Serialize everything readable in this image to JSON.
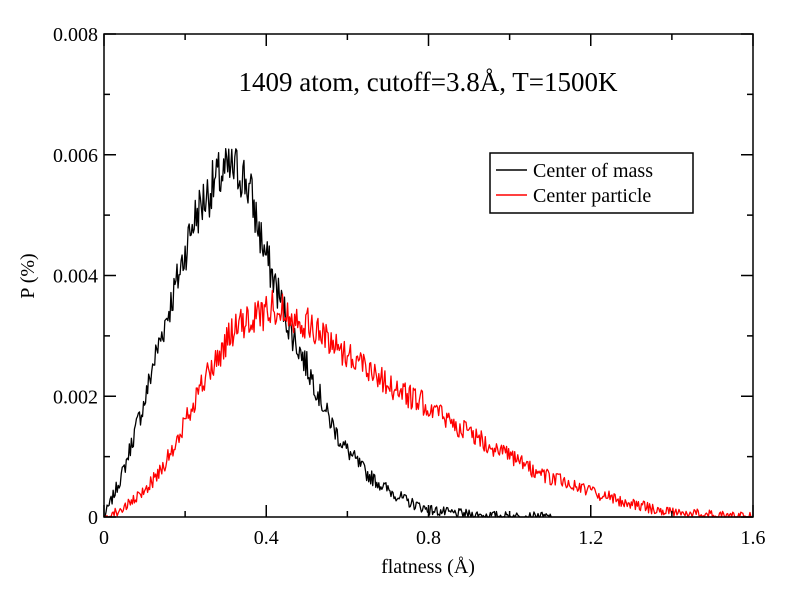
{
  "chart_data": {
    "type": "line",
    "title": "",
    "annotation": "1409 atom, cutoff=3.8Å, T=1500K",
    "xlabel": "flatness (Å)",
    "ylabel": "P (%)",
    "xlim": [
      0,
      1.6
    ],
    "ylim": [
      0,
      0.008
    ],
    "xticks": [
      "0",
      "0.4",
      "0.8",
      "1.2",
      "1.6"
    ],
    "yticks": [
      "0",
      "0.002",
      "0.004",
      "0.006",
      "0.008"
    ],
    "grid": false,
    "legend_position": "top-right",
    "series": [
      {
        "name": "Center of mass",
        "color": "#000000",
        "x": [
          0,
          0.02,
          0.05,
          0.08,
          0.1,
          0.12,
          0.15,
          0.18,
          0.2,
          0.22,
          0.25,
          0.28,
          0.3,
          0.32,
          0.34,
          0.36,
          0.38,
          0.4,
          0.42,
          0.44,
          0.46,
          0.48,
          0.5,
          0.52,
          0.55,
          0.58,
          0.6,
          0.65,
          0.7,
          0.75,
          0.8,
          0.85,
          0.9,
          0.95,
          1.0,
          1.1,
          1.2,
          1.4,
          1.6
        ],
        "values": [
          0.0,
          0.0003,
          0.0008,
          0.0015,
          0.0019,
          0.0025,
          0.0032,
          0.0039,
          0.0044,
          0.0049,
          0.0053,
          0.0056,
          0.0057,
          0.00575,
          0.0057,
          0.0054,
          0.0048,
          0.0043,
          0.0039,
          0.0035,
          0.0031,
          0.0028,
          0.0025,
          0.0022,
          0.0017,
          0.0013,
          0.0011,
          0.0007,
          0.00045,
          0.00025,
          0.00012,
          7e-05,
          4e-05,
          2e-05,
          1e-05,
          0.0,
          0.0,
          0.0,
          0.0
        ]
      },
      {
        "name": "Center particle",
        "color": "#ff0000",
        "x": [
          0,
          0.02,
          0.05,
          0.08,
          0.1,
          0.12,
          0.15,
          0.18,
          0.2,
          0.22,
          0.25,
          0.28,
          0.3,
          0.32,
          0.35,
          0.38,
          0.4,
          0.42,
          0.45,
          0.48,
          0.5,
          0.52,
          0.55,
          0.6,
          0.65,
          0.7,
          0.75,
          0.8,
          0.85,
          0.9,
          0.95,
          1.0,
          1.05,
          1.1,
          1.15,
          1.2,
          1.25,
          1.3,
          1.35,
          1.4,
          1.45,
          1.5,
          1.55,
          1.6
        ],
        "values": [
          0.0,
          5e-05,
          0.00015,
          0.0003,
          0.00045,
          0.0006,
          0.0009,
          0.0012,
          0.0016,
          0.0019,
          0.0023,
          0.0026,
          0.0029,
          0.0031,
          0.0032,
          0.00335,
          0.0034,
          0.0035,
          0.0034,
          0.0033,
          0.0032,
          0.0031,
          0.00295,
          0.0027,
          0.0025,
          0.0022,
          0.002,
          0.00185,
          0.0016,
          0.0014,
          0.0012,
          0.001,
          0.0008,
          0.00065,
          0.00055,
          0.00042,
          0.00032,
          0.00022,
          0.00014,
          9e-05,
          6e-05,
          3e-05,
          1e-05,
          0.0
        ]
      }
    ]
  }
}
